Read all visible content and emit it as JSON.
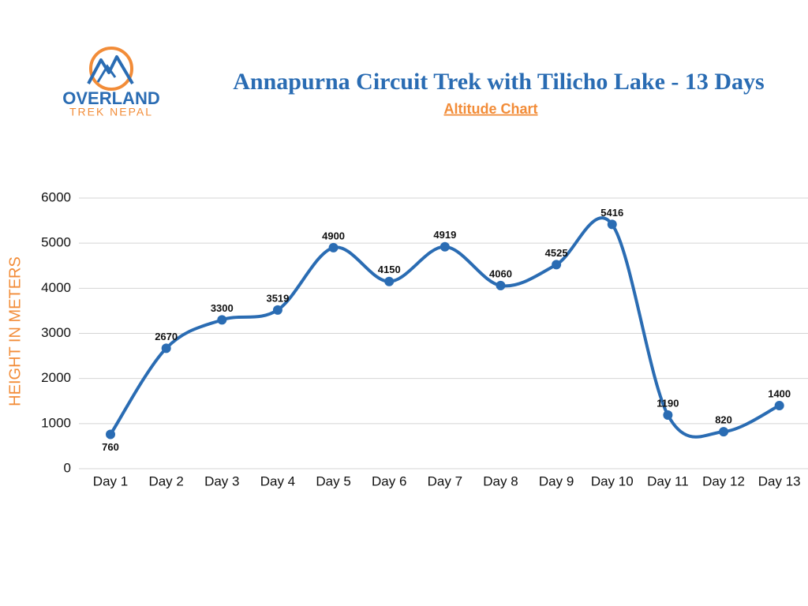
{
  "logo": {
    "name": "OVERLAND",
    "tagline": "TREK NEPAL"
  },
  "chart_data": {
    "type": "line",
    "title": "Annapurna Circuit Trek with Tilicho Lake - 13 Days",
    "subtitle": "Altitude Chart",
    "y_label": "HEIGHT IN METERS",
    "categories": [
      "Day 1",
      "Day 2",
      "Day 3",
      "Day 4",
      "Day 5",
      "Day 6",
      "Day 7",
      "Day 8",
      "Day 9",
      "Day 10",
      "Day 11",
      "Day 12",
      "Day 13"
    ],
    "values": [
      760,
      2670,
      3300,
      3519,
      4900,
      4150,
      4919,
      4060,
      4525,
      5416,
      1190,
      820,
      1400
    ],
    "color": "#2a6cb3",
    "ylim": [
      0,
      6000
    ],
    "yticks": [
      0,
      1000,
      2000,
      3000,
      4000,
      5000,
      6000
    ],
    "grid": true
  }
}
